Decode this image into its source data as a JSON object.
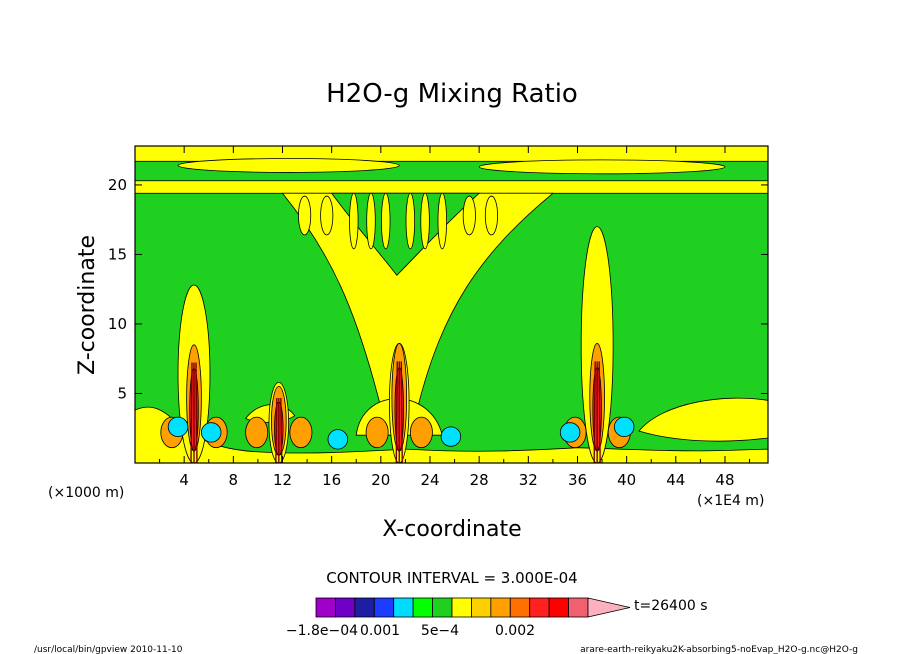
{
  "chart_data": {
    "type": "heatmap",
    "title": "H2O-g Mixing Ratio",
    "xlabel": "X-coordinate",
    "ylabel": "Z-coordinate",
    "x_scale_note": "(×1E4 m)",
    "z_scale_note": "(×1000 m)",
    "xlim": [
      0,
      51.5
    ],
    "ylim": [
      0,
      22.8
    ],
    "x_ticks": [
      4,
      8,
      12,
      16,
      20,
      24,
      28,
      32,
      36,
      40,
      44,
      48
    ],
    "y_ticks": [
      5,
      10,
      15,
      20
    ],
    "contour_interval": "CONTOUR INTERVAL = 3.000E-04",
    "time_label": "t=26400 s",
    "colorbar": {
      "labels": [
        "−1.8e−04",
        "0.001",
        "5e−4",
        "0.002"
      ],
      "colors": [
        "#a000c8",
        "#6e00c8",
        "#1e1ea0",
        "#1e3cff",
        "#00dcff",
        "#00ff00",
        "#20d020",
        "#ffff00",
        "#ffd000",
        "#ffa000",
        "#ff7000",
        "#ff2020",
        "#ff0000",
        "#f06070",
        "#ffb0c0"
      ]
    },
    "background_color": "#20d020",
    "columns": [
      {
        "x": 4.8,
        "top": 12.8,
        "peak": 8.5
      },
      {
        "x": 11.7,
        "top": 5.8,
        "peak": 5.5
      },
      {
        "x": 21.5,
        "top": 8.6,
        "peak": 8.6
      },
      {
        "x": 37.6,
        "top": 17.0,
        "peak": 8.6
      }
    ],
    "dry_patches": [
      {
        "x": 3.5,
        "z": 2.6
      },
      {
        "x": 6.2,
        "z": 2.2
      },
      {
        "x": 16.5,
        "z": 1.7
      },
      {
        "x": 25.7,
        "z": 1.9
      },
      {
        "x": 35.4,
        "z": 2.2
      },
      {
        "x": 39.8,
        "z": 2.6
      }
    ]
  },
  "footer": {
    "left": "/usr/local/bin/gpview  2010-11-10",
    "right": "arare-earth-reikyaku2K-absorbing5-noEvap_H2O-g.nc@H2O-g"
  }
}
